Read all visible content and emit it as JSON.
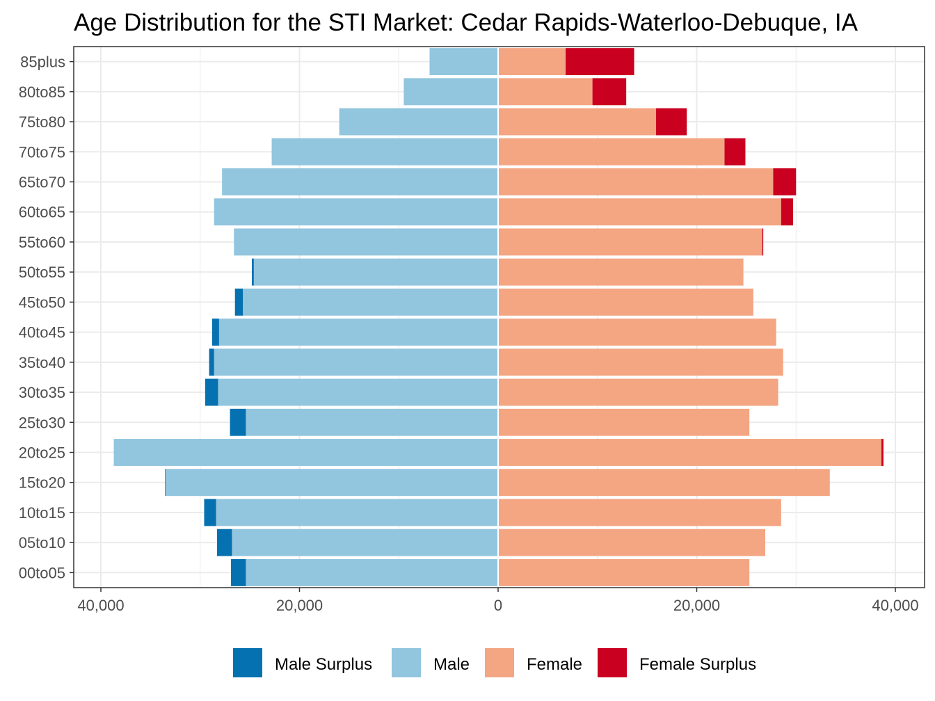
{
  "chart_data": {
    "type": "bar",
    "orientation": "horizontal",
    "title": "Age Distribution for the STI Market: Cedar Rapids-Waterloo-Debuque, IA",
    "xlabel": "",
    "ylabel": "",
    "xlim": [
      -41000,
      41000
    ],
    "x_ticks": [
      -40000,
      -20000,
      0,
      20000,
      40000
    ],
    "x_tick_labels": [
      "40,000",
      "20,000",
      "0",
      "20,000",
      "40,000"
    ],
    "grid": true,
    "legend_position": "bottom",
    "categories": [
      "00to05",
      "05to10",
      "10to15",
      "15to20",
      "20to25",
      "25to30",
      "30to35",
      "35to40",
      "40to45",
      "45to50",
      "50to55",
      "55to60",
      "60to65",
      "65to70",
      "70to75",
      "75to80",
      "80to85",
      "85plus"
    ],
    "series": [
      {
        "name": "Male Surplus",
        "color": "#0571b0",
        "values": [
          1500,
          1500,
          1200,
          50,
          0,
          1600,
          1300,
          500,
          700,
          800,
          200,
          0,
          0,
          0,
          0,
          0,
          0,
          0
        ]
      },
      {
        "name": "Male",
        "color": "#92c5de",
        "values": [
          25400,
          26800,
          28400,
          33500,
          38700,
          25400,
          28200,
          28600,
          28100,
          25700,
          24600,
          26600,
          28600,
          27800,
          22800,
          16000,
          9500,
          6900
        ]
      },
      {
        "name": "Female",
        "color": "#f4a582",
        "values": [
          25300,
          26900,
          28500,
          33400,
          38600,
          25300,
          28200,
          28700,
          28000,
          25700,
          24700,
          26600,
          28500,
          27700,
          22800,
          15900,
          9500,
          6800
        ]
      },
      {
        "name": "Female Surplus",
        "color": "#ca0020",
        "values": [
          0,
          0,
          0,
          0,
          200,
          0,
          0,
          0,
          0,
          0,
          0,
          100,
          1200,
          2300,
          2100,
          3100,
          3400,
          6900
        ]
      }
    ]
  }
}
